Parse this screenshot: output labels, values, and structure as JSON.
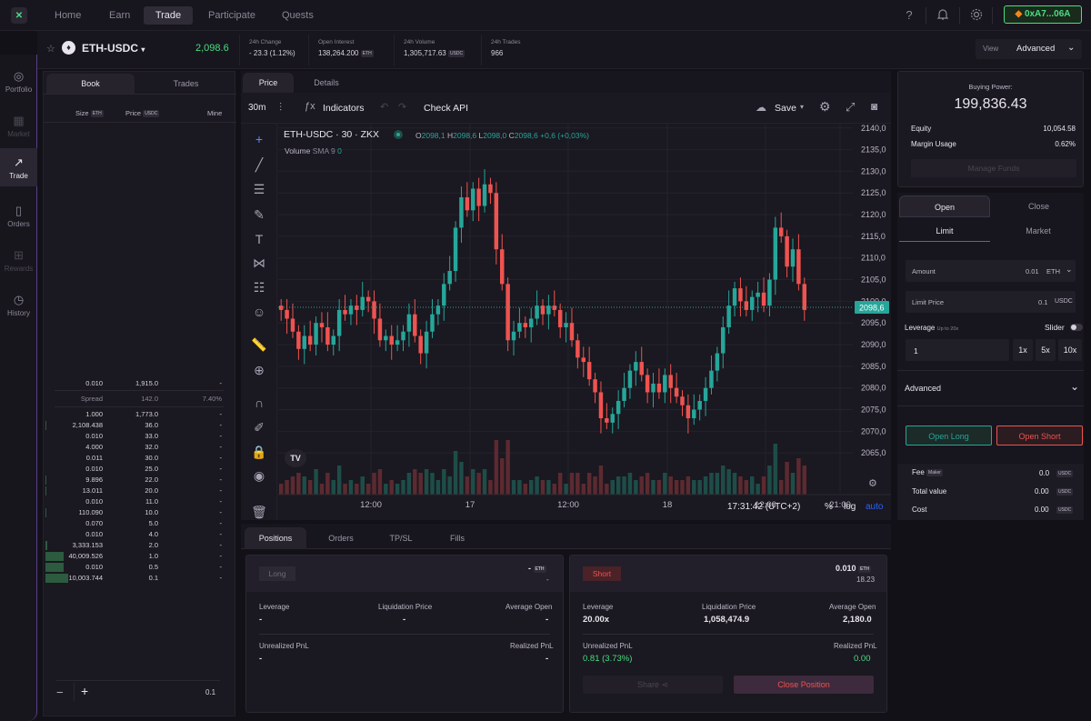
{
  "nav": {
    "items": [
      "Home",
      "Earn",
      "Trade",
      "Participate",
      "Quests"
    ],
    "active": 2
  },
  "wallet": {
    "address": "0xA7...06A"
  },
  "sidebar": {
    "items": [
      {
        "label": "Portfolio",
        "icon": "portfolio-icon"
      },
      {
        "label": "Market",
        "icon": "market-icon"
      },
      {
        "label": "Trade",
        "icon": "trade-icon"
      },
      {
        "label": "Orders",
        "icon": "orders-icon"
      },
      {
        "label": "Rewards",
        "icon": "rewards-icon"
      },
      {
        "label": "History",
        "icon": "history-icon"
      }
    ]
  },
  "market": {
    "pair": "ETH-USDC",
    "price": "2,098.6",
    "change_label": "24h Change",
    "change_value": "- 23.3 (1.12%)",
    "oi_label": "Open Interest",
    "oi_value": "138,264.200",
    "oi_unit": "ETH",
    "volume_label": "24h Volume",
    "volume_value": "1,305,717.63",
    "volume_unit": "USDC",
    "trades_label": "24h Trades",
    "trades_value": "966",
    "view_label": "View",
    "view_value": "Advanced"
  },
  "orderbook": {
    "tabs": [
      "Book",
      "Trades"
    ],
    "headers": {
      "size": "Size",
      "size_unit": "ETH",
      "price": "Price",
      "price_unit": "USDC",
      "mine": "Mine"
    },
    "asks": [
      {
        "size": "0.010",
        "price": "1,915.0",
        "mine": "-"
      }
    ],
    "spread": {
      "label": "Spread",
      "value": "142.0",
      "pct": "7.40%"
    },
    "bids": [
      {
        "size": "1.000",
        "price": "1,773.0",
        "mine": "-",
        "depth": 0.0
      },
      {
        "size": "2,108.438",
        "price": "36.0",
        "mine": "-",
        "depth": 0.02
      },
      {
        "size": "0.010",
        "price": "33.0",
        "mine": "-",
        "depth": 0.0
      },
      {
        "size": "4.000",
        "price": "32.0",
        "mine": "-",
        "depth": 0.0
      },
      {
        "size": "0.011",
        "price": "30.0",
        "mine": "-",
        "depth": 0.0
      },
      {
        "size": "0.010",
        "price": "25.0",
        "mine": "-",
        "depth": 0.0
      },
      {
        "size": "9.896",
        "price": "22.0",
        "mine": "-",
        "depth": 0.01
      },
      {
        "size": "13.011",
        "price": "20.0",
        "mine": "-",
        "depth": 0.01
      },
      {
        "size": "0.010",
        "price": "11.0",
        "mine": "-",
        "depth": 0.0
      },
      {
        "size": "110.090",
        "price": "10.0",
        "mine": "-",
        "depth": 0.01
      },
      {
        "size": "0.070",
        "price": "5.0",
        "mine": "-",
        "depth": 0.0
      },
      {
        "size": "0.010",
        "price": "4.0",
        "mine": "-",
        "depth": 0.0
      },
      {
        "size": "3,333.153",
        "price": "2.0",
        "mine": "-",
        "depth": 0.06
      },
      {
        "size": "40,009.526",
        "price": "1.0",
        "mine": "-",
        "depth": 0.72
      },
      {
        "size": "0.010",
        "price": "0.5",
        "mine": "-",
        "depth": 0.72
      },
      {
        "size": "10,003.744",
        "price": "0.1",
        "mine": "-",
        "depth": 0.9
      }
    ],
    "grouping": "0.1"
  },
  "chart_tabs": [
    "Price",
    "Details"
  ],
  "chart_toolbar": {
    "interval": "30m",
    "indicators": "Indicators",
    "check_api": "Check API",
    "save": "Save"
  },
  "chart_legend": {
    "symbol": "ETH-USDC · 30 · ZKX",
    "o": "2098,1",
    "h": "2098,6",
    "l": "2098,0",
    "c": "2098,6",
    "change": "+0,6 (+0,03%)",
    "volume": "Volume",
    "sma": "SMA 9",
    "sma_value": "0",
    "o_label": "O",
    "h_label": "H",
    "l_label": "L",
    "c_label": "C"
  },
  "chart_footer": {
    "time": "17:31:42 (UTC+2)",
    "pct": "%",
    "log": "log",
    "auto": "auto"
  },
  "chart_data": {
    "type": "candlestick",
    "y_ticks": [
      2140,
      2135,
      2130,
      2125,
      2120,
      2115,
      2110,
      2105,
      2100,
      2095,
      2090,
      2085,
      2080,
      2075,
      2070,
      2065
    ],
    "y_tick_labels": [
      "2140,0",
      "2135,0",
      "2130,0",
      "2125,0",
      "2120,0",
      "2115,0",
      "2110,0",
      "2105,0",
      "2100,0",
      "2095,0",
      "2090,0",
      "2085,0",
      "2080,0",
      "2075,0",
      "2070,0",
      "2065,0"
    ],
    "ylim": [
      2060,
      2141
    ],
    "x_labels": [
      "12:00",
      "17",
      "12:00",
      "18",
      "12:00",
      "21:00"
    ],
    "last_price": "2098,6",
    "last_value": 2098.6,
    "closes": [
      2098,
      2096,
      2093,
      2089,
      2092,
      2090,
      2095,
      2094,
      2090,
      2092,
      2098,
      2097,
      2099,
      2098,
      2101,
      2100,
      2096,
      2091,
      2092,
      2090,
      2091,
      2093,
      2097,
      2092,
      2088,
      2093,
      2097,
      2099,
      2104,
      2107,
      2117,
      2124,
      2121,
      2126,
      2122,
      2127,
      2125,
      2112,
      2104,
      2091,
      2093,
      2095,
      2094,
      2096,
      2099,
      2097,
      2099,
      2098,
      2094,
      2095,
      2091,
      2087,
      2086,
      2082,
      2079,
      2073,
      2072,
      2074,
      2077,
      2080,
      2084,
      2086,
      2083,
      2079,
      2081,
      2079,
      2083,
      2080,
      2078,
      2076,
      2073,
      2075,
      2077,
      2080,
      2084,
      2088,
      2094,
      2099,
      2103,
      2100,
      2098,
      2101,
      2102,
      2099,
      2105,
      2117,
      2115,
      2108,
      2112,
      2104,
      2098
    ],
    "volume_max": 1
  },
  "account": {
    "buying_power_label": "Buying Power:",
    "buying_power": "199,836.43",
    "equity_label": "Equity",
    "equity": "10,054.58",
    "margin_label": "Margin Usage",
    "margin": "0.62%",
    "manage": "Manage Funds"
  },
  "order_form": {
    "tabs": [
      "Open",
      "Close"
    ],
    "types": [
      "Limit",
      "Market"
    ],
    "amount_label": "Amount",
    "amount": "0.01",
    "amount_unit": "ETH",
    "limit_label": "Limit Price",
    "limit": "0.1",
    "limit_unit": "USDC",
    "leverage_label": "Leverage",
    "leverage_hint": "Up to 20x",
    "slider_label": "Slider",
    "leverage_value": "1",
    "lev_buttons": [
      "1x",
      "5x",
      "10x"
    ],
    "advanced": "Advanced",
    "open_long": "Open Long",
    "open_short": "Open Short",
    "fee_label": "Fee",
    "fee_badge": "Maker",
    "fee": "0.0",
    "fee_unit": "USDC",
    "total_label": "Total value",
    "total": "0.00",
    "total_unit": "USDC",
    "cost_label": "Cost",
    "cost": "0.00",
    "cost_unit": "USDC"
  },
  "positions": {
    "tabs": [
      "Positions",
      "Orders",
      "TP/SL",
      "Fills"
    ],
    "long": {
      "badge": "Long",
      "size": "-",
      "size_unit": "ETH",
      "sub": "-",
      "leverage_label": "Leverage",
      "leverage": "-",
      "liq_label": "Liquidation Price",
      "liq": "-",
      "avg_label": "Average Open",
      "avg": "-",
      "upnl_label": "Unrealized PnL",
      "upnl": "-",
      "rpnl_label": "Realized PnL",
      "rpnl": "-"
    },
    "short": {
      "badge": "Short",
      "size": "0.010",
      "size_unit": "ETH",
      "sub": "18.23",
      "leverage_label": "Leverage",
      "leverage": "20.00x",
      "liq_label": "Liquidation Price",
      "liq": "1,058,474.9",
      "avg_label": "Average Open",
      "avg": "2,180.0",
      "upnl_label": "Unrealized PnL",
      "upnl": "0.81 (3.73%)",
      "rpnl_label": "Realized PnL",
      "rpnl": "0.00",
      "share": "Share",
      "close": "Close Position"
    }
  },
  "colors": {
    "up": "#26a69a",
    "down": "#ef5350",
    "accent": "#4ade80",
    "sidebar_border": "#5b3f8a"
  }
}
